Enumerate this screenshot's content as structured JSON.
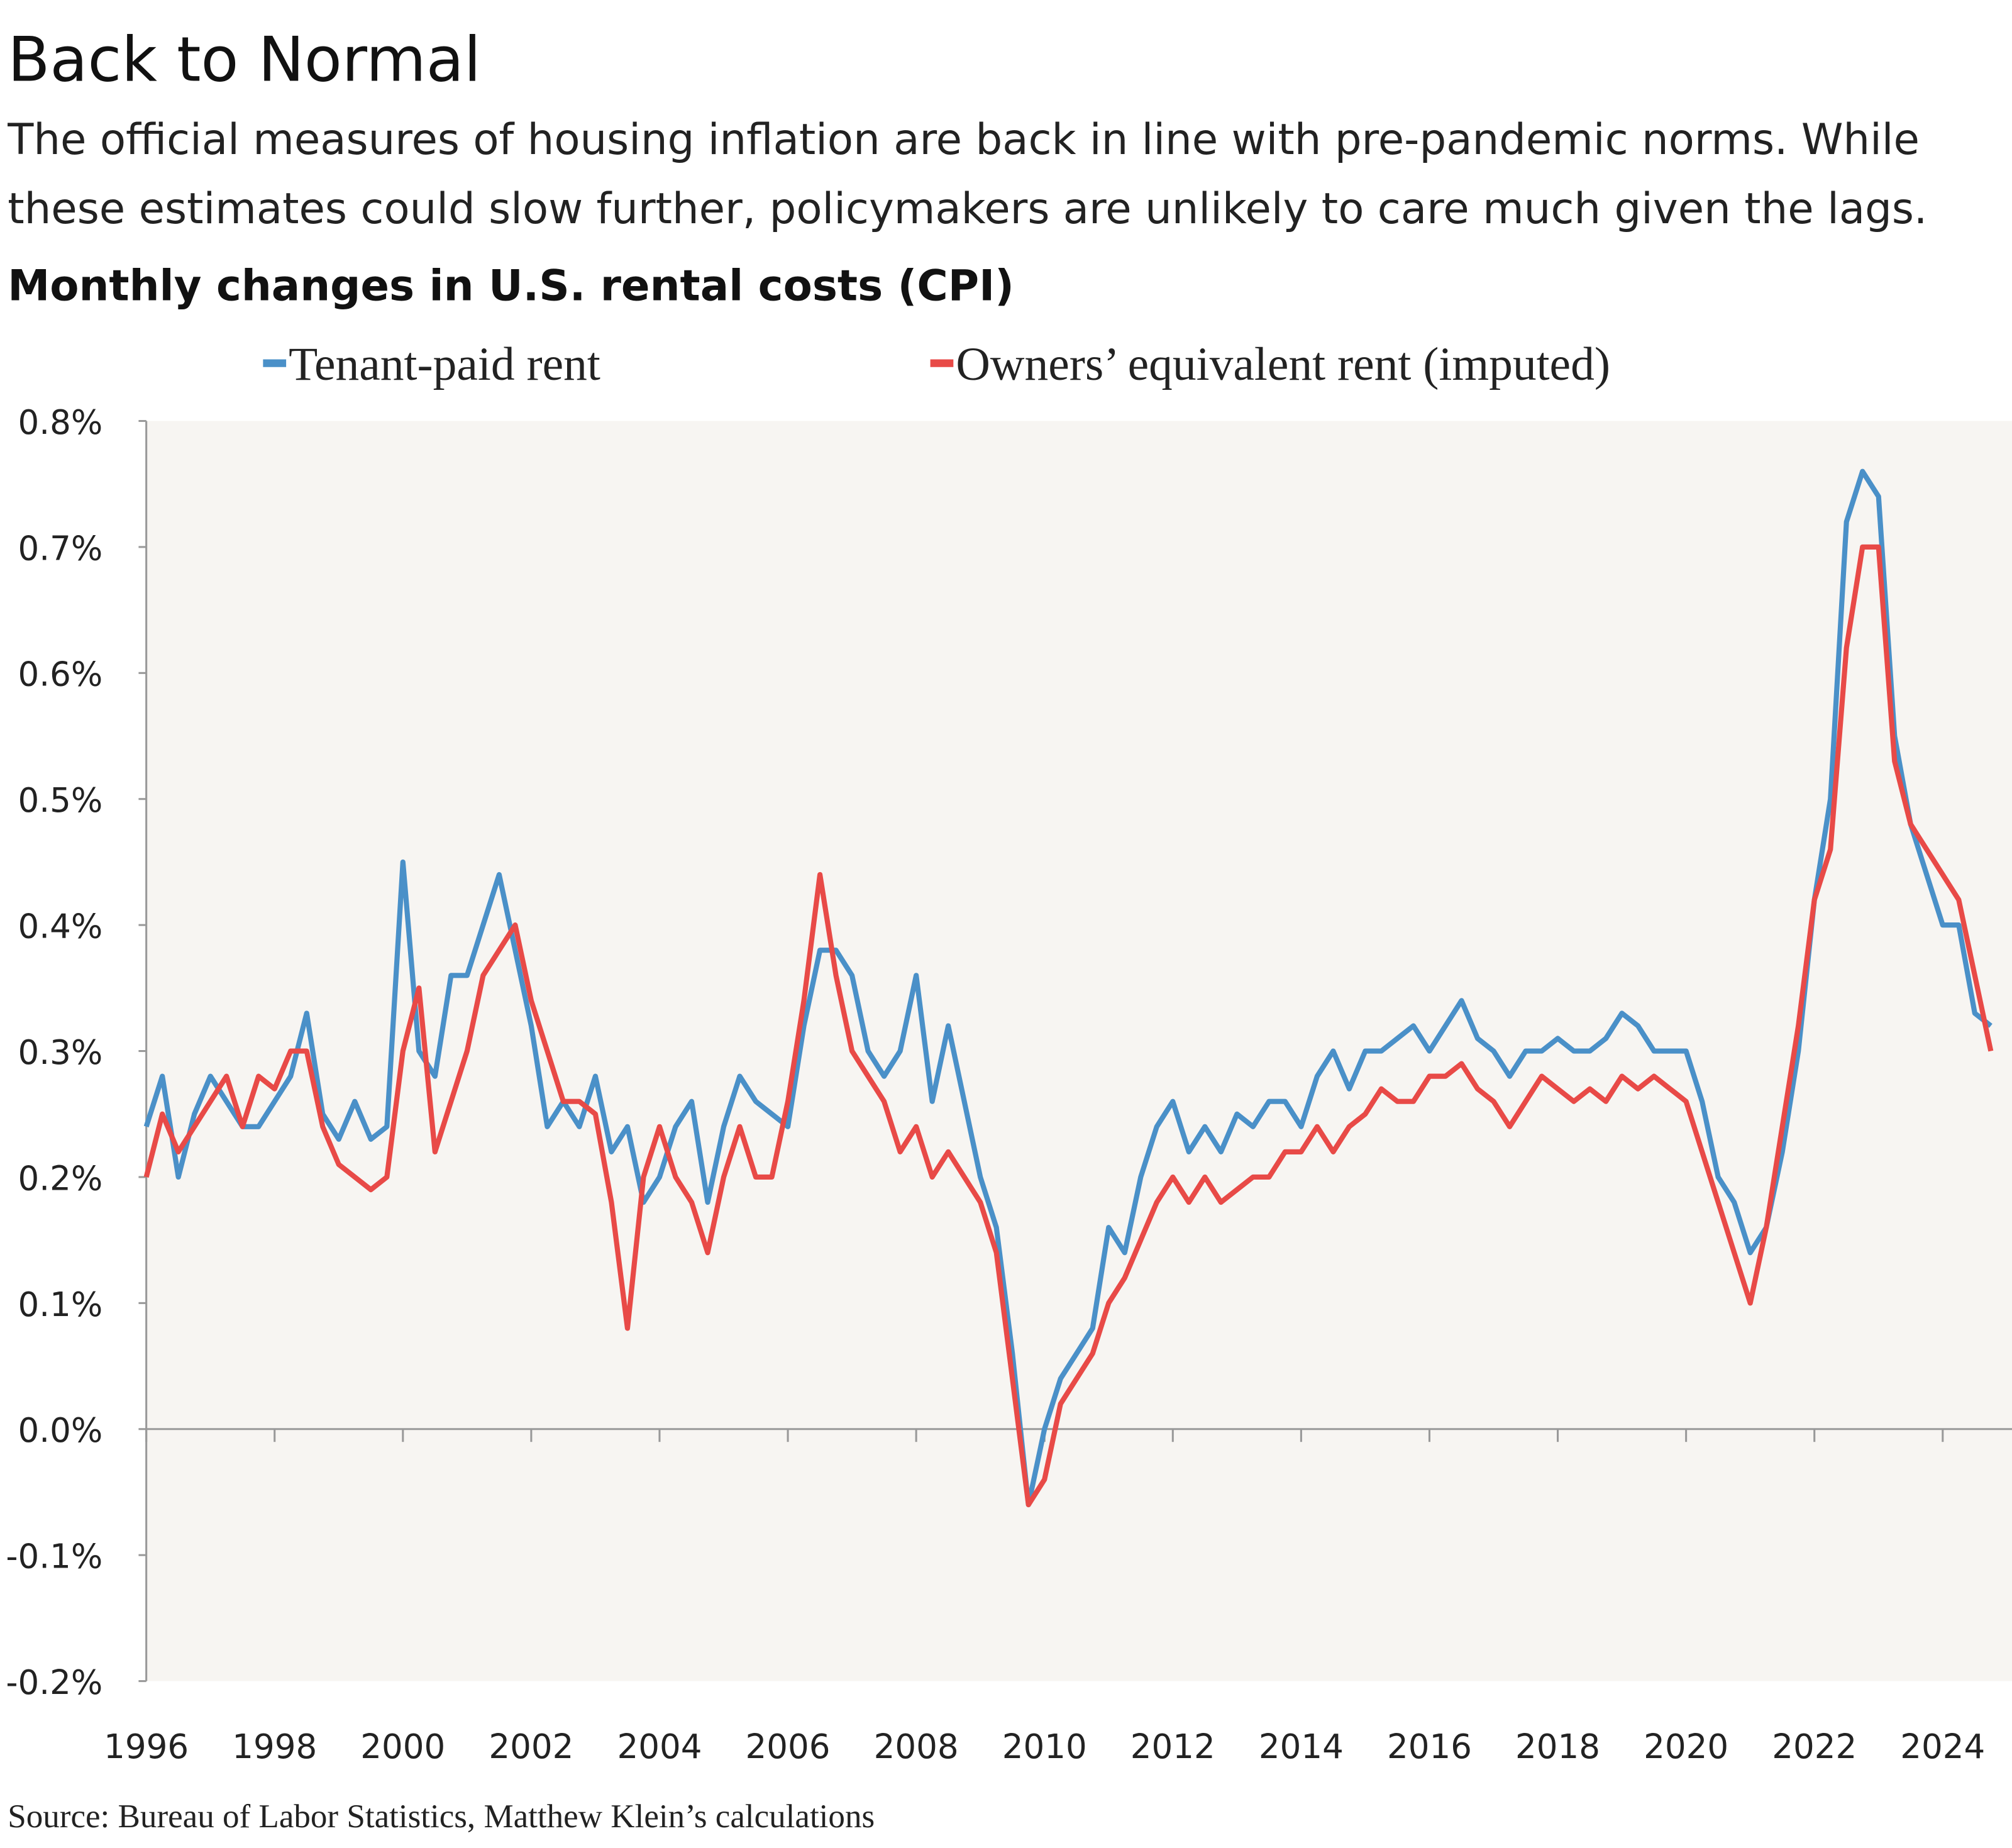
{
  "chart_data": {
    "type": "line",
    "title": "Back to Normal",
    "subtitle": [
      "The official measures of housing inflation are back in line with pre-pandemic norms. While",
      "these estimates could slow further, policymakers are unlikely to care much given the lags."
    ],
    "chart_title": "Monthly changes in U.S. rental costs (CPI)",
    "source": "Source: Bureau of Labor Statistics, Matthew Klein’s calculations",
    "x": [
      1996,
      1996.25,
      1996.5,
      1996.75,
      1997,
      1997.25,
      1997.5,
      1997.75,
      1998,
      1998.25,
      1998.5,
      1998.75,
      1999,
      1999.25,
      1999.5,
      1999.75,
      2000,
      2000.25,
      2000.5,
      2000.75,
      2001,
      2001.25,
      2001.5,
      2001.75,
      2002,
      2002.25,
      2002.5,
      2002.75,
      2003,
      2003.25,
      2003.5,
      2003.75,
      2004,
      2004.25,
      2004.5,
      2004.75,
      2005,
      2005.25,
      2005.5,
      2005.75,
      2006,
      2006.25,
      2006.5,
      2006.75,
      2007,
      2007.25,
      2007.5,
      2007.75,
      2008,
      2008.25,
      2008.5,
      2008.75,
      2009,
      2009.25,
      2009.5,
      2009.75,
      2010,
      2010.25,
      2010.5,
      2010.75,
      2011,
      2011.25,
      2011.5,
      2011.75,
      2012,
      2012.25,
      2012.5,
      2012.75,
      2013,
      2013.25,
      2013.5,
      2013.75,
      2014,
      2014.25,
      2014.5,
      2014.75,
      2015,
      2015.25,
      2015.5,
      2015.75,
      2016,
      2016.25,
      2016.5,
      2016.75,
      2017,
      2017.25,
      2017.5,
      2017.75,
      2018,
      2018.25,
      2018.5,
      2018.75,
      2019,
      2019.25,
      2019.5,
      2019.75,
      2020,
      2020.25,
      2020.5,
      2020.75,
      2021,
      2021.25,
      2021.5,
      2021.75,
      2022,
      2022.25,
      2022.5,
      2022.75,
      2023,
      2023.25,
      2023.5,
      2023.75,
      2024,
      2024.25,
      2024.5,
      2024.75
    ],
    "series": [
      {
        "name": "Tenant-paid rent",
        "color": "#4a90c8",
        "values": [
          0.24,
          0.28,
          0.2,
          0.25,
          0.28,
          0.26,
          0.24,
          0.24,
          0.26,
          0.28,
          0.33,
          0.25,
          0.23,
          0.26,
          0.23,
          0.24,
          0.45,
          0.3,
          0.28,
          0.36,
          0.36,
          0.4,
          0.44,
          0.38,
          0.32,
          0.24,
          0.26,
          0.24,
          0.28,
          0.22,
          0.24,
          0.18,
          0.2,
          0.24,
          0.26,
          0.18,
          0.24,
          0.28,
          0.26,
          0.25,
          0.24,
          0.32,
          0.38,
          0.38,
          0.36,
          0.3,
          0.28,
          0.3,
          0.36,
          0.26,
          0.32,
          0.26,
          0.2,
          0.16,
          0.06,
          -0.06,
          0.0,
          0.04,
          0.06,
          0.08,
          0.16,
          0.14,
          0.2,
          0.24,
          0.26,
          0.22,
          0.24,
          0.22,
          0.25,
          0.24,
          0.26,
          0.26,
          0.24,
          0.28,
          0.3,
          0.27,
          0.3,
          0.3,
          0.31,
          0.32,
          0.3,
          0.32,
          0.34,
          0.31,
          0.3,
          0.28,
          0.3,
          0.3,
          0.31,
          0.3,
          0.3,
          0.31,
          0.33,
          0.32,
          0.3,
          0.3,
          0.3,
          0.26,
          0.2,
          0.18,
          0.14,
          0.16,
          0.22,
          0.3,
          0.42,
          0.5,
          0.72,
          0.76,
          0.74,
          0.55,
          0.48,
          0.44,
          0.4,
          0.4,
          0.33,
          0.32
        ]
      },
      {
        "name": "Owners’ equivalent rent (imputed)",
        "color": "#e84a47",
        "values": [
          0.2,
          0.25,
          0.22,
          0.24,
          0.26,
          0.28,
          0.24,
          0.28,
          0.27,
          0.3,
          0.3,
          0.24,
          0.21,
          0.2,
          0.19,
          0.2,
          0.3,
          0.35,
          0.22,
          0.26,
          0.3,
          0.36,
          0.38,
          0.4,
          0.34,
          0.3,
          0.26,
          0.26,
          0.25,
          0.18,
          0.08,
          0.2,
          0.24,
          0.2,
          0.18,
          0.14,
          0.2,
          0.24,
          0.2,
          0.2,
          0.26,
          0.34,
          0.44,
          0.36,
          0.3,
          0.28,
          0.26,
          0.22,
          0.24,
          0.2,
          0.22,
          0.2,
          0.18,
          0.14,
          0.04,
          -0.06,
          -0.04,
          0.02,
          0.04,
          0.06,
          0.1,
          0.12,
          0.15,
          0.18,
          0.2,
          0.18,
          0.2,
          0.18,
          0.19,
          0.2,
          0.2,
          0.22,
          0.22,
          0.24,
          0.22,
          0.24,
          0.25,
          0.27,
          0.26,
          0.26,
          0.28,
          0.28,
          0.29,
          0.27,
          0.26,
          0.24,
          0.26,
          0.28,
          0.27,
          0.26,
          0.27,
          0.26,
          0.28,
          0.27,
          0.28,
          0.27,
          0.26,
          0.22,
          0.18,
          0.14,
          0.1,
          0.16,
          0.24,
          0.32,
          0.42,
          0.46,
          0.62,
          0.7,
          0.7,
          0.53,
          0.48,
          0.46,
          0.44,
          0.42,
          0.36,
          0.3
        ]
      }
    ],
    "xlim": [
      1996,
      2025.08
    ],
    "xticks": [
      1996,
      1998,
      2000,
      2002,
      2004,
      2006,
      2008,
      2010,
      2012,
      2014,
      2016,
      2018,
      2020,
      2022,
      2024
    ],
    "ylim": [
      -0.2,
      0.8
    ],
    "yticks": [
      {
        "value": -0.2,
        "label": "-0.2%"
      },
      {
        "value": -0.1,
        "label": "-0.1%"
      },
      {
        "value": 0.0,
        "label": "0.0%"
      },
      {
        "value": 0.1,
        "label": "0.1%"
      },
      {
        "value": 0.2,
        "label": "0.2%"
      },
      {
        "value": 0.3,
        "label": "0.3%"
      },
      {
        "value": 0.4,
        "label": "0.4%"
      },
      {
        "value": 0.5,
        "label": "0.5%"
      },
      {
        "value": 0.6,
        "label": "0.6%"
      },
      {
        "value": 0.7,
        "label": "0.7%"
      },
      {
        "value": 0.8,
        "label": "0.8%"
      }
    ]
  }
}
